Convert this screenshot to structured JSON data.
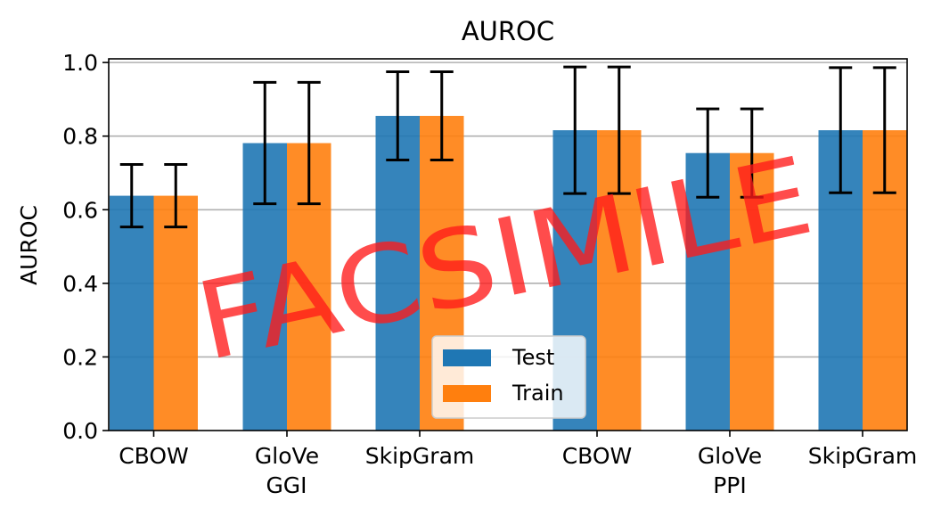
{
  "chart_data": {
    "type": "bar",
    "title": "AUROC",
    "xlabel": "",
    "ylabel": "AUROC",
    "ylim": [
      0,
      1.01
    ],
    "yticks": [
      "0.0",
      "0.2",
      "0.4",
      "0.6",
      "0.8",
      "1.0"
    ],
    "grid": "horizontal",
    "legend_position": "bottom-center",
    "categories": [
      "CBOW",
      "GloVe",
      "SkipGram",
      "CBOW",
      "GloVe",
      "SkipGram"
    ],
    "groups": [
      "GGI",
      "PPI"
    ],
    "series": [
      {
        "name": "Test",
        "color": "#1f77b4",
        "values": [
          0.638,
          0.781,
          0.855,
          0.816,
          0.754,
          0.816
        ],
        "errors": [
          0.085,
          0.165,
          0.12,
          0.172,
          0.12,
          0.17
        ]
      },
      {
        "name": "Train",
        "color": "#ff7f0e",
        "values": [
          0.638,
          0.781,
          0.855,
          0.816,
          0.754,
          0.816
        ],
        "errors": [
          0.085,
          0.165,
          0.12,
          0.172,
          0.12,
          0.17
        ]
      }
    ]
  },
  "watermark": "FACSIMILE"
}
